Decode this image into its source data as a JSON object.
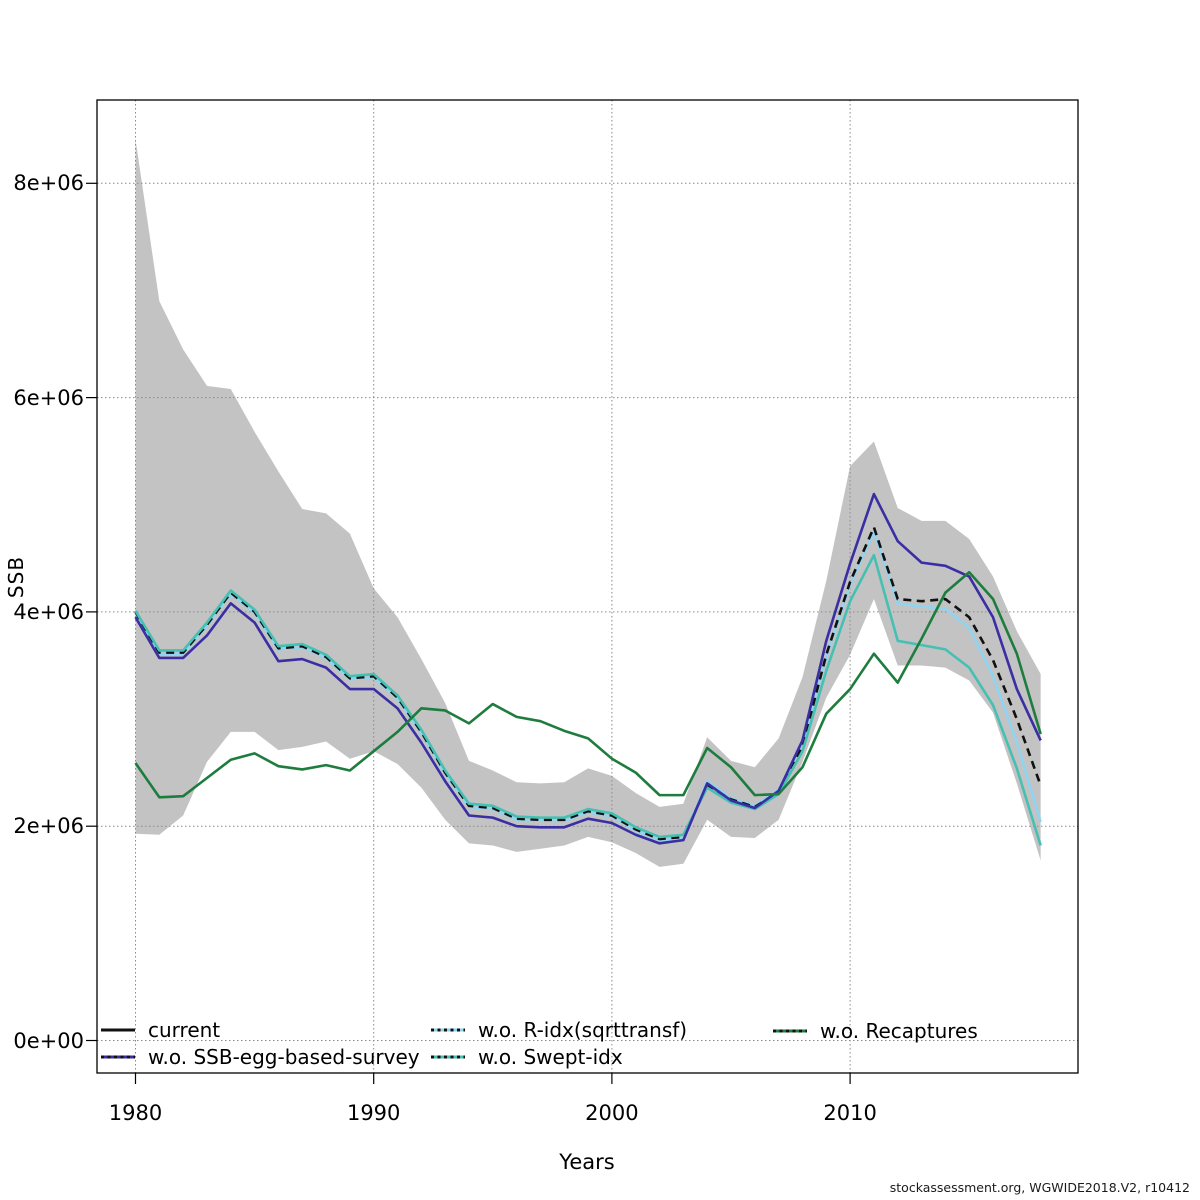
{
  "footer": {
    "text": "stockassessment.org, WGWIDE2018.V2, r10412"
  },
  "axes": {
    "x_label": "Years",
    "y_label": "SSB",
    "x_ticks": [
      {
        "label": "1980",
        "year": 1980
      },
      {
        "label": "1990",
        "year": 1990
      },
      {
        "label": "2000",
        "year": 2000
      },
      {
        "label": "2010",
        "year": 2010
      }
    ],
    "y_ticks": [
      {
        "label": "0e+00",
        "value": 0
      },
      {
        "label": "2e+06",
        "value": 2
      },
      {
        "label": "4e+06",
        "value": 4
      },
      {
        "label": "6e+06",
        "value": 6
      },
      {
        "label": "8e+06",
        "value": 8
      }
    ]
  },
  "colors": {
    "current": "#111111",
    "ssb_egg": "#3A2EA3",
    "r_idx": "#8FD4F0",
    "swept": "#45C0B2",
    "recaptures": "#1E7D3E",
    "band": "#C3C3C3",
    "grid": "#8A8A8A",
    "frame": "#000000"
  },
  "legend": {
    "items": [
      {
        "id": "current",
        "label": "current"
      },
      {
        "id": "ssb_egg",
        "label": "w.o. SSB-egg-based-survey"
      },
      {
        "id": "r_idx",
        "label": "w.o. R-idx(sqrttransf)"
      },
      {
        "id": "swept",
        "label": "w.o. Swept-idx"
      },
      {
        "id": "recaptures",
        "label": "w.o. Recaptures"
      }
    ]
  },
  "chart_data": {
    "type": "line",
    "title": "",
    "xlabel": "Years",
    "ylabel": "SSB",
    "value_scale": 1000000,
    "xlim": [
      1978.4,
      2019.6
    ],
    "ylim_e6": [
      -0.3,
      8.8
    ],
    "grid": true,
    "legend_position": "bottom-inside",
    "x": [
      1980,
      1981,
      1982,
      1983,
      1984,
      1985,
      1986,
      1987,
      1988,
      1989,
      1990,
      1991,
      1992,
      1993,
      1994,
      1995,
      1996,
      1997,
      1998,
      1999,
      2000,
      2001,
      2002,
      2003,
      2004,
      2005,
      2006,
      2007,
      2008,
      2009,
      2010,
      2011,
      2012,
      2013,
      2014,
      2015,
      2016,
      2017,
      2018
    ],
    "series": [
      {
        "id": "current",
        "name": "current",
        "values_e6": [
          4.0,
          3.62,
          3.62,
          3.88,
          4.18,
          4.0,
          3.66,
          3.68,
          3.58,
          3.38,
          3.4,
          3.2,
          2.88,
          2.5,
          2.19,
          2.17,
          2.07,
          2.06,
          2.06,
          2.14,
          2.1,
          1.97,
          1.88,
          1.9,
          2.38,
          2.25,
          2.18,
          2.32,
          2.75,
          3.6,
          4.28,
          4.79,
          4.12,
          4.1,
          4.12,
          3.95,
          3.55,
          3.0,
          2.38
        ]
      },
      {
        "id": "ssb_egg",
        "name": "w.o. SSB-egg-based-survey",
        "values_e6": [
          3.95,
          3.57,
          3.57,
          3.78,
          4.08,
          3.9,
          3.54,
          3.56,
          3.48,
          3.28,
          3.28,
          3.1,
          2.78,
          2.42,
          2.1,
          2.08,
          2.0,
          1.99,
          1.99,
          2.07,
          2.03,
          1.92,
          1.84,
          1.87,
          2.4,
          2.24,
          2.17,
          2.33,
          2.8,
          3.73,
          4.45,
          5.1,
          4.66,
          4.46,
          4.43,
          4.33,
          3.95,
          3.28,
          2.8
        ]
      },
      {
        "id": "r_idx",
        "name": "w.o. R-idx(sqrttransf)",
        "values_e6": [
          3.99,
          3.61,
          3.61,
          3.87,
          4.17,
          3.99,
          3.65,
          3.67,
          3.57,
          3.37,
          3.39,
          3.19,
          2.87,
          2.49,
          2.18,
          2.16,
          2.06,
          2.05,
          2.05,
          2.13,
          2.09,
          1.96,
          1.87,
          1.89,
          2.42,
          2.26,
          2.19,
          2.34,
          2.77,
          3.58,
          4.25,
          4.75,
          4.08,
          4.05,
          4.03,
          3.85,
          3.4,
          2.78,
          2.04
        ]
      },
      {
        "id": "swept",
        "name": "w.o. Swept-idx",
        "values_e6": [
          4.01,
          3.64,
          3.64,
          3.9,
          4.2,
          4.02,
          3.68,
          3.7,
          3.6,
          3.4,
          3.42,
          3.22,
          2.9,
          2.52,
          2.21,
          2.19,
          2.09,
          2.08,
          2.08,
          2.16,
          2.12,
          1.99,
          1.9,
          1.92,
          2.36,
          2.22,
          2.16,
          2.3,
          2.7,
          3.45,
          4.1,
          4.53,
          3.73,
          3.69,
          3.65,
          3.48,
          3.13,
          2.54,
          1.82
        ]
      },
      {
        "id": "recaptures",
        "name": "w.o. Recaptures",
        "values_e6": [
          2.59,
          2.27,
          2.28,
          2.45,
          2.62,
          2.68,
          2.56,
          2.53,
          2.57,
          2.52,
          2.7,
          2.88,
          3.1,
          3.08,
          2.96,
          3.14,
          3.02,
          2.98,
          2.89,
          2.82,
          2.63,
          2.5,
          2.29,
          2.29,
          2.73,
          2.55,
          2.29,
          2.3,
          2.55,
          3.05,
          3.28,
          3.61,
          3.34,
          3.75,
          4.18,
          4.37,
          4.12,
          3.61,
          2.86
        ]
      }
    ],
    "confidence_band": {
      "series": "current",
      "upper_e6": [
        8.41,
        6.9,
        6.45,
        6.11,
        6.08,
        5.68,
        5.31,
        4.96,
        4.92,
        4.73,
        4.22,
        3.95,
        3.56,
        3.15,
        2.61,
        2.52,
        2.41,
        2.4,
        2.41,
        2.54,
        2.47,
        2.31,
        2.18,
        2.21,
        2.83,
        2.61,
        2.55,
        2.82,
        3.39,
        4.29,
        5.36,
        5.59,
        4.97,
        4.85,
        4.85,
        4.68,
        4.33,
        3.82,
        3.42
      ],
      "lower_e6": [
        1.93,
        1.92,
        2.1,
        2.6,
        2.88,
        2.88,
        2.71,
        2.74,
        2.79,
        2.63,
        2.7,
        2.58,
        2.36,
        2.06,
        1.84,
        1.82,
        1.76,
        1.79,
        1.82,
        1.9,
        1.85,
        1.75,
        1.62,
        1.65,
        2.06,
        1.9,
        1.89,
        2.06,
        2.6,
        3.2,
        3.6,
        4.12,
        3.5,
        3.5,
        3.48,
        3.36,
        3.06,
        2.4,
        1.68
      ]
    }
  }
}
